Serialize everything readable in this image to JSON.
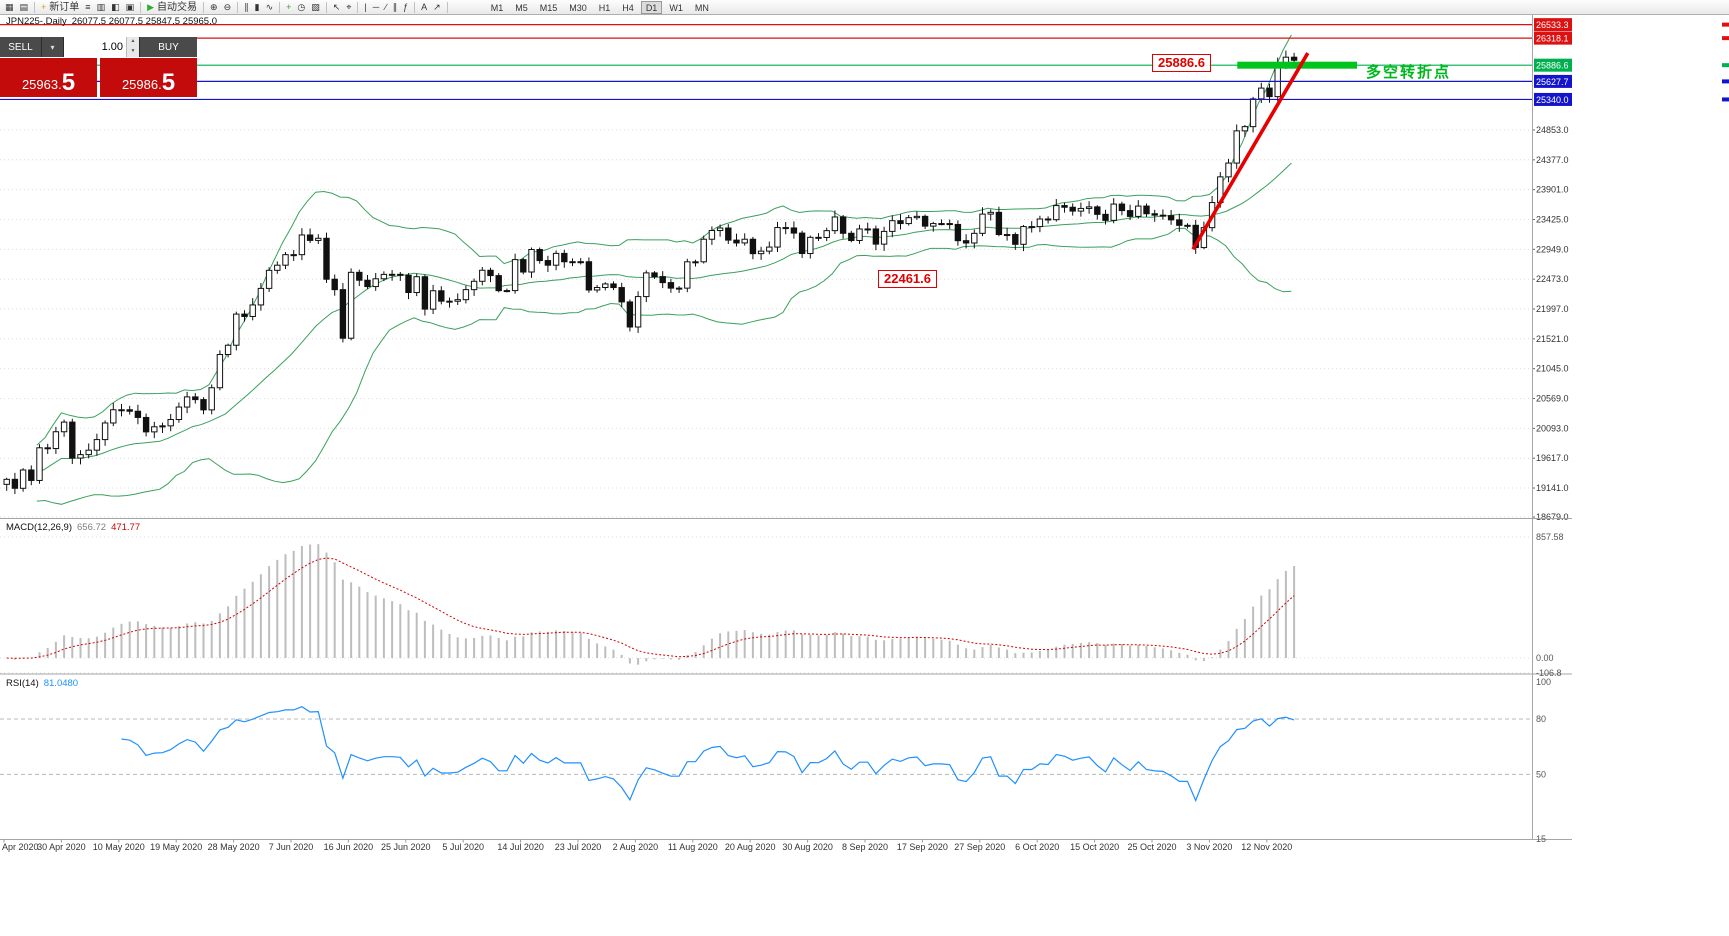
{
  "toolbar": {
    "items": [
      {
        "name": "new-chart-button",
        "glyph": "▦"
      },
      {
        "name": "chart-profiles-button",
        "glyph": "▤"
      },
      {
        "sep": true
      },
      {
        "name": "new-order-button",
        "glyph": "+",
        "glyph_color": "#d4a017",
        "label": "新订单"
      },
      {
        "name": "market-watch-button",
        "glyph": "≡"
      },
      {
        "name": "data-window-button",
        "glyph": "▥"
      },
      {
        "name": "navigator-button",
        "glyph": "◧"
      },
      {
        "name": "terminal-button",
        "glyph": "▣"
      },
      {
        "sep": true
      },
      {
        "name": "auto-trading-button",
        "glyph": "▶",
        "glyph_color": "#2faf2f",
        "label": "自动交易"
      },
      {
        "sep": true
      },
      {
        "name": "zoom-in-button",
        "glyph": "⊕"
      },
      {
        "name": "zoom-out-button",
        "glyph": "⊖"
      },
      {
        "sep": true
      },
      {
        "name": "bar-chart-button",
        "glyph": "∥"
      },
      {
        "name": "candlestick-chart-button",
        "glyph": "▮"
      },
      {
        "name": "line-chart-button",
        "glyph": "∿"
      },
      {
        "sep": true
      },
      {
        "name": "indicators-button",
        "glyph": "+",
        "glyph_color": "#2faf2f"
      },
      {
        "name": "periods-button",
        "glyph": "◷"
      },
      {
        "name": "templates-button",
        "glyph": "▧"
      },
      {
        "sep": true
      },
      {
        "name": "cursor-button",
        "glyph": "↖"
      },
      {
        "name": "crosshair-button",
        "glyph": "⌖"
      },
      {
        "sep": true
      },
      {
        "name": "vertical-line-button",
        "glyph": "|"
      },
      {
        "name": "horizontal-line-button",
        "glyph": "─"
      },
      {
        "name": "trendline-button",
        "glyph": "∕"
      },
      {
        "name": "channel-button",
        "glyph": "∥"
      },
      {
        "name": "fibonacci-button",
        "glyph": "ƒ"
      },
      {
        "sep": true
      },
      {
        "name": "text-button",
        "glyph": "A"
      },
      {
        "name": "arrow-tools-button",
        "glyph": "↗"
      },
      {
        "sep": true
      }
    ],
    "timeframes": [
      "M1",
      "M5",
      "M15",
      "M30",
      "H1",
      "H4",
      "D1",
      "W1",
      "MN"
    ],
    "active_timeframe": "D1"
  },
  "chart_header": {
    "symbol": "JPN225-,Daily",
    "ohlc": "26077.5 26077.5 25847.5 25965.0"
  },
  "trade_panel": {
    "sell_label": "SELL",
    "buy_label": "BUY",
    "volume": "1.00",
    "sell_price_main": "25963.",
    "sell_price_big": "5",
    "buy_price_main": "25986.",
    "buy_price_big": "5"
  },
  "annotations": {
    "level_box_1": "25886.6",
    "level_box_2": "22461.6",
    "turning_point_label": "多空转折点"
  },
  "indicators": {
    "macd_label": "MACD(12,26,9)",
    "macd_value": "656.72",
    "macd_signal": "471.77",
    "rsi_label": "RSI(14)",
    "rsi_value": "81.0480"
  },
  "colors": {
    "resistance": "#dd1111",
    "bull_line": "#00b050",
    "support": "#1414cc",
    "trend": "#e60000",
    "turning_segment": "#00c41c",
    "bollinger": "#3aa05c",
    "macd_hist": "#bdbdbd",
    "macd_signal": "#d40000",
    "rsi_line": "#1e90ff",
    "candle_up": "#ffffff",
    "candle_down": "#111111",
    "candle_border": "#111111"
  },
  "chart_data": {
    "type": "candlestick",
    "symbol": "JPN225-,Daily",
    "ohlc_display": [
      26077.5,
      26077.5,
      25847.5,
      25965.0
    ],
    "price_axis_range": [
      18679,
      26687
    ],
    "closes": [
      19280,
      19137,
      19429,
      19262,
      19783,
      19771,
      20039,
      20193,
      19619,
      19674,
      19745,
      19914,
      20179,
      20390,
      20390,
      20366,
      20267,
      20037,
      20118,
      20133,
      20234,
      20433,
      20595,
      20552,
      20388,
      20741,
      21271,
      21419,
      21916,
      21878,
      22062,
      22326,
      22614,
      22696,
      22864,
      22864,
      23178,
      23091,
      23125,
      22472,
      22306,
      21531,
      22582,
      22456,
      22355,
      22479,
      22549,
      22550,
      22534,
      22260,
      22512,
      21995,
      22288,
      22122,
      22121,
      22146,
      22306,
      22439,
      22615,
      22530,
      22290,
      22291,
      22785,
      22587,
      22946,
      22770,
      22696,
      22884,
      22751,
      22752,
      22751,
      22300,
      22340,
      22397,
      22339,
      22110,
      21710,
      22195,
      22573,
      22514,
      22418,
      22330,
      22330,
      22750,
      22750,
      23110,
      23249,
      23289,
      23096,
      23051,
      23110,
      22880,
      22920,
      22985,
      23296,
      23290,
      23208,
      22882,
      23140,
      23138,
      23247,
      23465,
      23205,
      23090,
      23274,
      23274,
      23032,
      23235,
      23406,
      23360,
      23454,
      23475,
      23319,
      23360,
      23360,
      23346,
      23087,
      23050,
      23204,
      23511,
      23539,
      23185,
      23185,
      23029,
      23312,
      23312,
      23433,
      23422,
      23647,
      23620,
      23559,
      23601,
      23626,
      23507,
      23411,
      23671,
      23567,
      23474,
      23639,
      23517,
      23494,
      23486,
      23419,
      23332,
      23332,
      22977,
      23295,
      23695,
      24105,
      24325,
      24839,
      24906,
      25349,
      25521,
      25385,
      25907,
      26014,
      25965
    ],
    "date_labels": [
      "Apr 2020",
      "30 Apr 2020",
      "10 May 2020",
      "19 May 2020",
      "28 May 2020",
      "7 Jun 2020",
      "16 Jun 2020",
      "25 Jun 2020",
      "5 Jul 2020",
      "14 Jul 2020",
      "23 Jul 2020",
      "2 Aug 2020",
      "11 Aug 2020",
      "20 Aug 2020",
      "30 Aug 2020",
      "8 Sep 2020",
      "17 Sep 2020",
      "27 Sep 2020",
      "6 Oct 2020",
      "15 Oct 2020",
      "25 Oct 2020",
      "3 Nov 2020",
      "12 Nov 2020"
    ],
    "label_every": 7,
    "price_ticks": [
      24853,
      24377,
      23901,
      23425,
      22949,
      22473,
      21997,
      21521,
      21045,
      20569,
      20093,
      19617,
      19141,
      18679
    ],
    "price_levels": [
      {
        "value": 26533.3,
        "color": "#dd1111"
      },
      {
        "value": 26318.1,
        "color": "#dd1111"
      },
      {
        "value": 25886.6,
        "color": "#00b050"
      },
      {
        "value": 25627.7,
        "color": "#1414cc"
      },
      {
        "value": 25340.0,
        "color": "#1414cc"
      }
    ],
    "bollinger": {
      "period": 20,
      "deviation": 2
    },
    "macd": {
      "fast": 12,
      "slow": 26,
      "signal": 9,
      "scale_ticks": [
        {
          "v": 857.58,
          "label": "857.58"
        },
        {
          "v": 0,
          "label": "0.00"
        },
        {
          "v": -106.8,
          "label": "-106.8"
        }
      ]
    },
    "rsi": {
      "period": 14,
      "levels": [
        80,
        50
      ],
      "scale_ticks": [
        {
          "v": 100,
          "label": "100"
        },
        {
          "v": 80,
          "label": "80"
        },
        {
          "v": 50,
          "label": "50"
        },
        {
          "v": 15,
          "label": "15"
        }
      ]
    },
    "trend_line": {
      "from_index": 145,
      "from_price": 22950,
      "to_index": 159,
      "to_price": 26080
    },
    "green_segment": {
      "price": 25886.6,
      "x1_index": 150.4,
      "x2_index": 165
    }
  }
}
